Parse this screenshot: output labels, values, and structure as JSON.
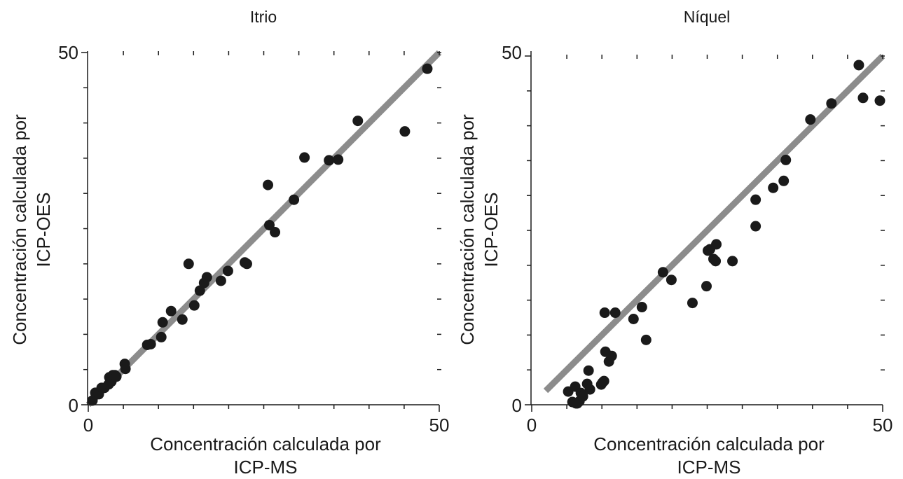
{
  "chart_data": [
    {
      "type": "scatter",
      "title": "Itrio",
      "xlabel": [
        "Concentración calculada por",
        "ICP-MS"
      ],
      "ylabel": [
        "Concentración calculada por",
        "ICP-OES"
      ],
      "xlim": [
        0,
        50
      ],
      "ylim": [
        0,
        50
      ],
      "x_tick_labels": [
        "0",
        "50"
      ],
      "y_tick_labels": [
        "0",
        "50"
      ],
      "grid": false,
      "reference_line": {
        "x": [
          0,
          50
        ],
        "y": [
          0,
          50
        ],
        "color": "#8c8c8c"
      },
      "series": [
        {
          "color": "#1a1a1a",
          "x": [
            0.6,
            1.0,
            1.5,
            1.9,
            2.3,
            2.9,
            3.0,
            3.3,
            3.5,
            3.8,
            4.0,
            5.2,
            5.3,
            8.4,
            8.9,
            10.4,
            10.6,
            11.8,
            13.4,
            14.3,
            15.1,
            15.9,
            16.5,
            16.9,
            18.9,
            19.9,
            22.3,
            22.6,
            25.6,
            25.8,
            26.6,
            29.3,
            30.8,
            34.3,
            35.6,
            38.4,
            45.1,
            48.3
          ],
          "y": [
            0.6,
            1.7,
            1.5,
            2.4,
            2.4,
            2.9,
            3.9,
            3.3,
            4.2,
            4.2,
            4.0,
            5.8,
            5.1,
            8.5,
            8.6,
            9.6,
            11.7,
            13.3,
            12.1,
            20.0,
            14.1,
            16.2,
            17.3,
            18.1,
            17.6,
            19.0,
            20.2,
            20.0,
            31.2,
            25.5,
            24.5,
            29.1,
            35.1,
            34.7,
            34.8,
            40.3,
            38.8,
            47.7
          ]
        }
      ]
    },
    {
      "type": "scatter",
      "title": "Níquel",
      "xlabel": [
        "Concentración calculada por",
        "ICP-MS"
      ],
      "ylabel": [
        "Concentración calculada por",
        "ICP-OES"
      ],
      "xlim": [
        0,
        50
      ],
      "ylim": [
        0,
        50
      ],
      "x_tick_labels": [
        "0",
        "50"
      ],
      "y_tick_labels": [
        "0",
        "50"
      ],
      "grid": false,
      "reference_line": {
        "x": [
          2,
          50
        ],
        "y": [
          2,
          50
        ],
        "color": "#8c8c8c"
      },
      "series": [
        {
          "color": "#1a1a1a",
          "x": [
            5.2,
            5.8,
            6.2,
            6.3,
            6.5,
            6.8,
            7.0,
            7.3,
            7.9,
            8.1,
            8.3,
            9.9,
            10.1,
            10.3,
            10.4,
            10.5,
            11.0,
            11.4,
            11.9,
            14.5,
            15.7,
            16.3,
            18.7,
            19.9,
            22.9,
            24.9,
            25.1,
            25.4,
            25.9,
            26.2,
            26.3,
            28.6,
            31.9,
            31.9,
            34.4,
            35.9,
            36.2,
            39.7,
            42.7,
            46.6,
            47.2,
            49.6
          ],
          "y": [
            1.9,
            0.4,
            2.6,
            0.2,
            0.2,
            0.5,
            1.7,
            1.2,
            3.0,
            4.9,
            2.2,
            2.9,
            3.2,
            3.4,
            13.2,
            7.6,
            6.2,
            7.0,
            13.2,
            12.3,
            14.0,
            9.3,
            19.0,
            17.9,
            14.6,
            17.0,
            22.1,
            22.3,
            20.9,
            20.6,
            23.0,
            20.6,
            25.6,
            29.4,
            31.1,
            32.1,
            35.1,
            40.9,
            43.2,
            48.7,
            44.0,
            43.6
          ]
        }
      ]
    }
  ]
}
